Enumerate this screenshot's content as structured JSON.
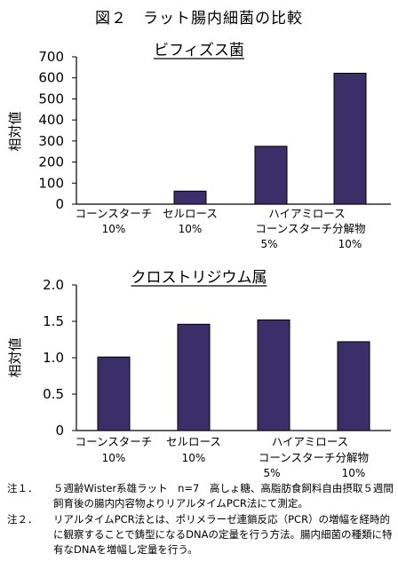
{
  "figure_title": "図２　ラット腸内細菌の比較",
  "chart_data": [
    {
      "type": "bar",
      "title": "ビフィズス菌",
      "ylabel": "相対値",
      "ylim": [
        0,
        700
      ],
      "yticks": [
        "0",
        "100",
        "200",
        "300",
        "400",
        "500",
        "600",
        "700"
      ],
      "categories": [
        {
          "line1": "コーンスターチ",
          "line2": "10%",
          "extra": ""
        },
        {
          "line1": "セルロース",
          "line2": "10%",
          "extra": ""
        },
        {
          "line1": "ハイアミロース",
          "line2": "5%",
          "extra": ""
        },
        {
          "line1": "コーンスターチ分解物",
          "line2": "10%",
          "extra": ""
        }
      ],
      "values": [
        0,
        62,
        275,
        622
      ],
      "bar_color": "#3b2f69"
    },
    {
      "type": "bar",
      "title": "クロストリジウム属",
      "ylabel": "相対値",
      "ylim": [
        0,
        2.0
      ],
      "yticks": [
        "0",
        "0.5",
        "1.0",
        "1.5",
        "2.0"
      ],
      "categories": [
        {
          "line1": "コーンスターチ",
          "line2": "10%",
          "extra": ""
        },
        {
          "line1": "セルロース",
          "line2": "10%",
          "extra": ""
        },
        {
          "line1": "ハイアミロース",
          "line2": "5%",
          "extra": ""
        },
        {
          "line1": "コーンスターチ分解物",
          "line2": "10%",
          "extra": ""
        }
      ],
      "values": [
        1.01,
        1.46,
        1.52,
        1.22
      ],
      "bar_color": "#3b2f69"
    }
  ],
  "notes": [
    {
      "label": "注１．",
      "text": "５週齢Wister系雄ラット　n=7　高しょ糖、高脂肪食飼料自由摂取５週間飼育後の腸内内容物よりリアルタイムPCR法にて測定。"
    },
    {
      "label": "注２．",
      "text": "リアルタイムPCR法とは、ポリメラーゼ連鎖反応（PCR）の増幅を経時的に観察することで鋳型になるDNAの定量を行う方法。腸内細菌の種類に特有なDNAを増幅し定量を行う。"
    }
  ]
}
